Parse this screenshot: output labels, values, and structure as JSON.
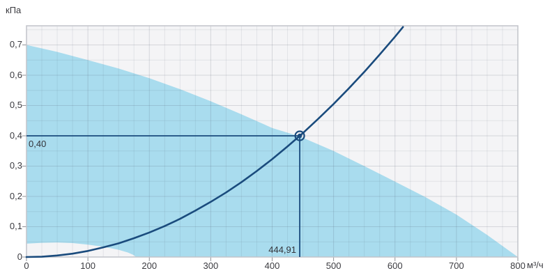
{
  "chart_data": {
    "type": "area",
    "title": "",
    "y_axis": {
      "unit": "кПа",
      "range": [
        0,
        0.7632
      ],
      "major_step": 0.1,
      "minor_step": 0.05,
      "ticks": [
        {
          "v": 0,
          "label": "0"
        },
        {
          "v": 0.1,
          "label": "0,1"
        },
        {
          "v": 0.2,
          "label": "0,2"
        },
        {
          "v": 0.3,
          "label": "0,3"
        },
        {
          "v": 0.4,
          "label": "0,4"
        },
        {
          "v": 0.5,
          "label": "0,5"
        },
        {
          "v": 0.6,
          "label": "0,6"
        },
        {
          "v": 0.7,
          "label": "0,7"
        }
      ]
    },
    "x_axis": {
      "unit": "м³/ч",
      "range": [
        0,
        800
      ],
      "major_step": 100,
      "minor_step": 25,
      "ticks": [
        {
          "v": 0,
          "label": "0"
        },
        {
          "v": 100,
          "label": "100"
        },
        {
          "v": 200,
          "label": "200"
        },
        {
          "v": 300,
          "label": "300"
        },
        {
          "v": 400,
          "label": "400"
        },
        {
          "v": 500,
          "label": "500"
        },
        {
          "v": 600,
          "label": "600"
        },
        {
          "v": 700,
          "label": "700"
        },
        {
          "v": 800,
          "label": "800"
        }
      ]
    },
    "grid": {
      "background": "#f4f4f6",
      "minor_color": "rgba(70,80,100,0.10)",
      "major_color": "rgba(70,80,100,0.18)",
      "border_color": "#c2c4ca",
      "tick_color": "#8f9096"
    },
    "series": [
      {
        "name": "fan-operating-envelope",
        "type": "area",
        "color": "#a9dcee",
        "upper_boundary": [
          [
            0,
            0.7
          ],
          [
            50,
            0.677
          ],
          [
            100,
            0.65
          ],
          [
            150,
            0.622
          ],
          [
            200,
            0.59
          ],
          [
            250,
            0.554
          ],
          [
            300,
            0.514
          ],
          [
            350,
            0.471
          ],
          [
            400,
            0.426
          ],
          [
            444.91,
            0.398
          ],
          [
            500,
            0.35
          ],
          [
            550,
            0.3
          ],
          [
            600,
            0.249
          ],
          [
            650,
            0.197
          ],
          [
            700,
            0.14
          ],
          [
            750,
            0.073
          ],
          [
            800,
            0
          ]
        ],
        "lower_cutout": [
          [
            0,
            0.044
          ],
          [
            25,
            0.047
          ],
          [
            50,
            0.048
          ],
          [
            75,
            0.046
          ],
          [
            100,
            0.041
          ],
          [
            125,
            0.034
          ],
          [
            150,
            0.024
          ],
          [
            165,
            0.015
          ],
          [
            175,
            0.006
          ],
          [
            178,
            0
          ]
        ]
      },
      {
        "name": "system-resistance-curve",
        "type": "line",
        "color": "#1a4b7d",
        "width": 2.6,
        "points": [
          [
            0,
            0
          ],
          [
            25,
            0.001
          ],
          [
            50,
            0.005
          ],
          [
            75,
            0.011
          ],
          [
            100,
            0.02
          ],
          [
            125,
            0.032
          ],
          [
            150,
            0.045
          ],
          [
            175,
            0.062
          ],
          [
            200,
            0.081
          ],
          [
            225,
            0.102
          ],
          [
            250,
            0.126
          ],
          [
            275,
            0.153
          ],
          [
            300,
            0.182
          ],
          [
            325,
            0.213
          ],
          [
            350,
            0.247
          ],
          [
            375,
            0.284
          ],
          [
            400,
            0.323
          ],
          [
            425,
            0.365
          ],
          [
            444.91,
            0.4
          ],
          [
            450,
            0.409
          ],
          [
            475,
            0.456
          ],
          [
            500,
            0.505
          ],
          [
            525,
            0.557
          ],
          [
            550,
            0.611
          ],
          [
            575,
            0.668
          ],
          [
            600,
            0.727
          ],
          [
            613,
            0.759
          ]
        ]
      }
    ],
    "operating_point": {
      "x": 444.91,
      "y": 0.4,
      "x_label": "444,91",
      "y_label": "0,40",
      "color": "#1a4b7d",
      "crosshair_width": 1.8
    }
  }
}
